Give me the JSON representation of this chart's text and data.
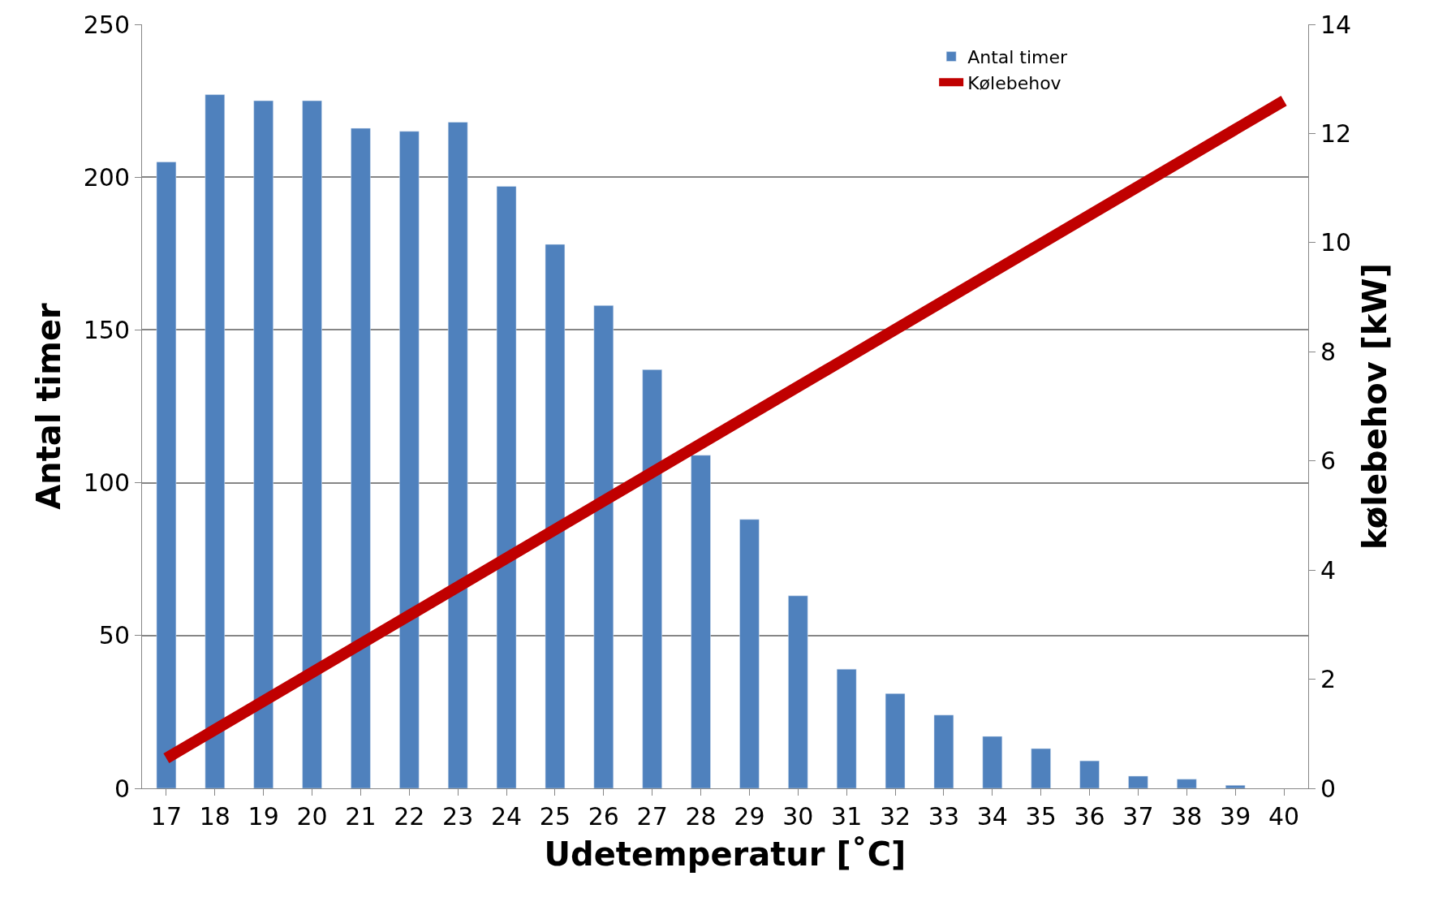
{
  "chart_data": {
    "type": "bar",
    "xlabel": "Udetemperatur [˚C]",
    "ylabel": "Antal timer",
    "y2label": "kølebehov [kW]",
    "categories": [
      "17",
      "18",
      "19",
      "20",
      "21",
      "22",
      "23",
      "24",
      "25",
      "26",
      "27",
      "28",
      "29",
      "30",
      "31",
      "32",
      "33",
      "34",
      "35",
      "36",
      "37",
      "38",
      "39",
      "40"
    ],
    "series": [
      {
        "name": "Antal timer",
        "color": "#4f81bd",
        "values": [
          205,
          227,
          225,
          225,
          216,
          215,
          218,
          197,
          178,
          158,
          137,
          109,
          88,
          63,
          39,
          31,
          24,
          17,
          13,
          9,
          4,
          3,
          1,
          null
        ]
      },
      {
        "name": "Kølebehov",
        "type": "line",
        "axis": "y2",
        "color": "#c00000",
        "x": [
          "17",
          "40"
        ],
        "values": [
          0.55,
          12.6
        ]
      }
    ],
    "ylim": [
      0,
      250
    ],
    "yticks": [
      0,
      50,
      100,
      150,
      200,
      250
    ],
    "y2lim": [
      0,
      14
    ],
    "y2ticks": [
      0,
      2,
      4,
      6,
      8,
      10,
      12,
      14
    ],
    "grid": "y",
    "legend": "top right",
    "marker": "none",
    "line_style": "solid"
  }
}
